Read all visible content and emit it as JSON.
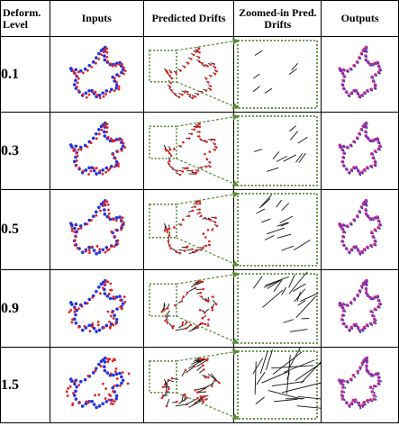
{
  "headers": {
    "level": "Deform. Level",
    "inputs": "Inputs",
    "predicted": "Predicted Drifts",
    "zoomed": "Zoomed-in Pred. Drifts",
    "outputs": "Outputs"
  },
  "rows": [
    {
      "level": "0.1"
    },
    {
      "level": "0.3"
    },
    {
      "level": "0.5"
    },
    {
      "level": "0.9"
    },
    {
      "level": "1.5"
    }
  ],
  "colors": {
    "template_points": "#2233dd",
    "deformed_points": "#e32222",
    "output_points": "#c0308a",
    "drift_lines": "#111111",
    "zoom_box": "#5a8a3a"
  }
}
